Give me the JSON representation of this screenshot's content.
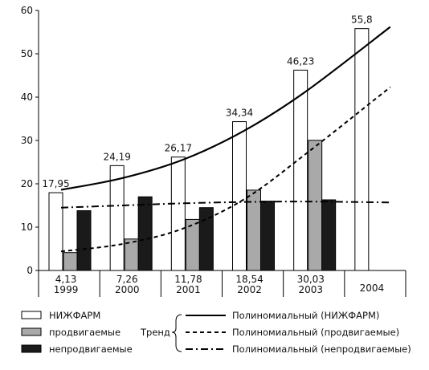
{
  "chart_data": {
    "type": "bar",
    "title": "",
    "xlabel": "",
    "ylabel": "",
    "ylim": [
      0,
      60
    ],
    "yticks": [
      0,
      10,
      20,
      30,
      40,
      50,
      60
    ],
    "grid": false,
    "categories": [
      "1999",
      "2000",
      "2001",
      "2002",
      "2003",
      "2004"
    ],
    "category_sublabels": [
      "4,13",
      "7,26",
      "11,78",
      "18,54",
      "30,03",
      ""
    ],
    "series": [
      {
        "name": "НИЖФАРМ",
        "color": "#ffffff",
        "values": [
          17.95,
          24.19,
          26.17,
          34.34,
          46.23,
          55.8
        ],
        "labels": [
          "17,95",
          "24,19",
          "26,17",
          "34,34",
          "46,23",
          "55,8"
        ]
      },
      {
        "name": "продвигаемые",
        "color": "#a9a9a9",
        "values": [
          4.13,
          7.26,
          11.78,
          18.54,
          30.03,
          null
        ]
      },
      {
        "name": "непродвигаемые",
        "color": "#1a1a1a",
        "values": [
          13.8,
          17.0,
          14.5,
          16.0,
          16.3,
          null
        ]
      }
    ],
    "trend_label": "Тренд",
    "trends": [
      {
        "name": "Полиномиальный (НИЖФАРМ)",
        "style": "solid",
        "points": [
          [
            0,
            18.6
          ],
          [
            1,
            21.3
          ],
          [
            2,
            25.6
          ],
          [
            3,
            32.3
          ],
          [
            4,
            41.3
          ],
          [
            5,
            56.2
          ]
        ]
      },
      {
        "name": "Полиномиальный (продвигаемые)",
        "style": "dash",
        "points": [
          [
            0,
            4.4
          ],
          [
            1,
            6.1
          ],
          [
            2,
            9.7
          ],
          [
            3,
            16.5
          ],
          [
            4,
            26.9
          ],
          [
            5,
            42.3
          ]
        ]
      },
      {
        "name": "Полиномиальный (непродвигаемые)",
        "style": "dashdot",
        "points": [
          [
            0,
            14.5
          ],
          [
            1,
            15.0
          ],
          [
            2,
            15.5
          ],
          [
            3,
            15.8
          ],
          [
            4,
            15.9
          ],
          [
            5,
            15.7
          ]
        ]
      }
    ],
    "legend_position": "bottom"
  }
}
